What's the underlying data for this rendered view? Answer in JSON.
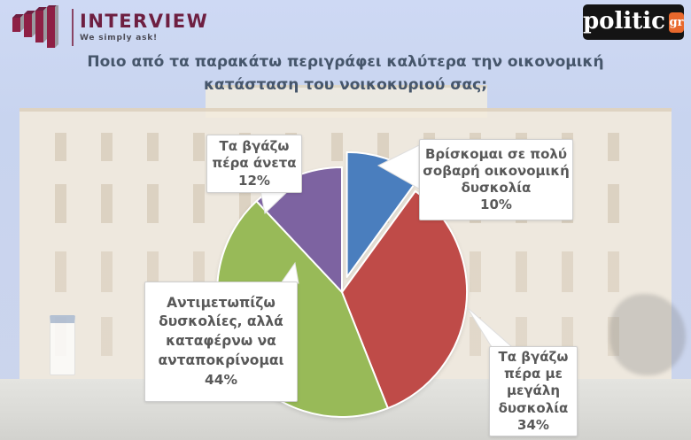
{
  "header": {
    "interview_logo": {
      "name": "INTERVIEW",
      "tagline": "We simply ask!",
      "icon": "bar-chart-icon",
      "brand_color": "#6E1F41"
    },
    "politic_logo": {
      "wordmark": "politic",
      "tld_badge": "gr",
      "badge_color": "#E8682C",
      "background_color": "#141414"
    }
  },
  "title": "Ποιο από τα παρακάτω περιγράφει καλύτερα την οικονομική κατάσταση του νοικοκυριού σας;",
  "chart_data": {
    "type": "pie",
    "title": "Ποιο από τα παρακάτω περιγράφει καλύτερα την οικονομική κατάσταση του νοικοκυριού σας;",
    "start_angle_deg": 0,
    "direction": "clockwise",
    "legend_position": "callouts",
    "slices": [
      {
        "id": "very-serious",
        "label": "Βρίσκομαι σε πολύ σοβαρή οικονομική δυσκολία",
        "value": 10,
        "color": "#4A7EBE",
        "exploded": true,
        "callout_text": "Βρίσκομαι σε πολύ\nσοβαρή οικονομική\nδυσκολία\n10%"
      },
      {
        "id": "great-difficulty",
        "label": "Τα βγάζω πέρα με μεγάλη δυσκολία",
        "value": 34,
        "color": "#BF4B48",
        "exploded": false,
        "callout_text": "Τα βγάζω\nπέρα με\nμεγάλη\nδυσκολία\n34%"
      },
      {
        "id": "coping",
        "label": "Αντιμετωπίζω δυσκολίες, αλλά καταφέρνω να ανταποκρίνομαι",
        "value": 44,
        "color": "#98BA58",
        "exploded": false,
        "callout_text": "Αντιμετωπίζω\nδυσκολίες, αλλά\nκαταφέρνω να\nανταποκρίνομαι\n44%"
      },
      {
        "id": "comfortable",
        "label": "Τα βγάζω πέρα άνετα",
        "value": 12,
        "color": "#7D63A1",
        "exploded": false,
        "callout_text": "Τα βγάζω\nπέρα άνετα\n12%"
      }
    ]
  }
}
